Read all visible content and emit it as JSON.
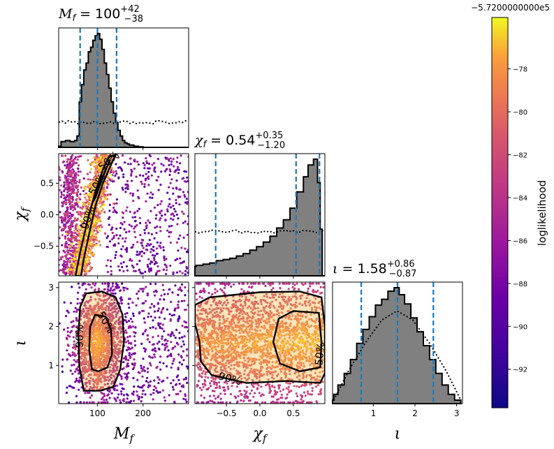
{
  "chart_data": {
    "type": "corner",
    "parameters": [
      {
        "key": "Mf",
        "symbol": "M",
        "sub": "f",
        "range": [
          15,
          300
        ],
        "ticks": [
          100,
          200
        ],
        "tick_labels": [
          "100",
          "200"
        ]
      },
      {
        "key": "chif",
        "symbol": "χ",
        "sub": "f",
        "range": [
          -0.97,
          0.97
        ],
        "ticks": [
          -0.5,
          0.0,
          0.5
        ],
        "tick_labels": [
          "−0.5",
          "0.0",
          "0.5"
        ],
        "y_tick_labels": [
          "−0.5",
          "0.0",
          "0.5"
        ]
      },
      {
        "key": "iota",
        "symbol": "ι",
        "sub": "",
        "range": [
          0.02,
          3.14
        ],
        "ticks": [
          1,
          2,
          3
        ],
        "tick_labels": [
          "1",
          "2",
          "3"
        ]
      }
    ],
    "titles": [
      {
        "lhs": "M",
        "sub": "f",
        "value": "100",
        "plus": "+42",
        "minus": "−38"
      },
      {
        "lhs": "χ",
        "sub": "f",
        "value": "0.54",
        "plus": "+0.35",
        "minus": "−1.20"
      },
      {
        "lhs": "ι",
        "sub": "",
        "value": "1.58",
        "plus": "+0.86",
        "minus": "−0.87"
      }
    ],
    "marginals": [
      {
        "param": "Mf",
        "quantiles": [
          62,
          100,
          142
        ],
        "posterior_hist": [
          [
            20,
            0.01
          ],
          [
            30,
            0.05
          ],
          [
            40,
            0.06
          ],
          [
            50,
            0.05
          ],
          [
            55,
            0.06
          ],
          [
            60,
            0.1
          ],
          [
            65,
            0.4
          ],
          [
            70,
            0.55
          ],
          [
            75,
            0.68
          ],
          [
            80,
            0.74
          ],
          [
            85,
            0.84
          ],
          [
            90,
            0.88
          ],
          [
            95,
            0.94
          ],
          [
            100,
            0.98
          ],
          [
            105,
            1.0
          ],
          [
            110,
            0.95
          ],
          [
            115,
            0.86
          ],
          [
            120,
            0.74
          ],
          [
            125,
            0.64
          ],
          [
            130,
            0.52
          ],
          [
            135,
            0.4
          ],
          [
            140,
            0.3
          ],
          [
            145,
            0.22
          ],
          [
            150,
            0.15
          ],
          [
            155,
            0.1
          ],
          [
            160,
            0.06
          ],
          [
            165,
            0.04
          ],
          [
            170,
            0.03
          ],
          [
            180,
            0.02
          ],
          [
            190,
            0.01
          ],
          [
            200,
            0.005
          ],
          [
            300,
            0.0
          ]
        ],
        "prior_level": 0.22
      },
      {
        "param": "chif",
        "quantiles": [
          -0.66,
          0.54,
          0.89
        ],
        "posterior_hist": [
          [
            -0.95,
            0.08
          ],
          [
            -0.85,
            0.09
          ],
          [
            -0.75,
            0.1
          ],
          [
            -0.65,
            0.11
          ],
          [
            -0.55,
            0.13
          ],
          [
            -0.45,
            0.14
          ],
          [
            -0.35,
            0.15
          ],
          [
            -0.25,
            0.17
          ],
          [
            -0.15,
            0.19
          ],
          [
            -0.05,
            0.22
          ],
          [
            0.05,
            0.25
          ],
          [
            0.15,
            0.29
          ],
          [
            0.25,
            0.34
          ],
          [
            0.35,
            0.41
          ],
          [
            0.45,
            0.48
          ],
          [
            0.55,
            0.58
          ],
          [
            0.65,
            0.72
          ],
          [
            0.72,
            0.85
          ],
          [
            0.8,
            0.95
          ],
          [
            0.86,
            1.0
          ],
          [
            0.9,
            0.8
          ],
          [
            0.93,
            0.4
          ],
          [
            0.97,
            0.0
          ]
        ],
        "prior_level": 0.38
      },
      {
        "param": "iota",
        "quantiles": [
          0.71,
          1.58,
          2.44
        ],
        "posterior_hist": [
          [
            0.05,
            0.03
          ],
          [
            0.15,
            0.08
          ],
          [
            0.3,
            0.16
          ],
          [
            0.45,
            0.26
          ],
          [
            0.6,
            0.38
          ],
          [
            0.75,
            0.52
          ],
          [
            0.9,
            0.64
          ],
          [
            1.05,
            0.75
          ],
          [
            1.2,
            0.85
          ],
          [
            1.35,
            0.9
          ],
          [
            1.5,
            0.97
          ],
          [
            1.62,
            1.0
          ],
          [
            1.75,
            0.94
          ],
          [
            1.9,
            0.86
          ],
          [
            2.05,
            0.74
          ],
          [
            2.2,
            0.62
          ],
          [
            2.35,
            0.5
          ],
          [
            2.5,
            0.38
          ],
          [
            2.65,
            0.26
          ],
          [
            2.8,
            0.16
          ],
          [
            2.95,
            0.08
          ],
          [
            3.1,
            0.03
          ]
        ],
        "prior_curve": [
          [
            0.05,
            0.03
          ],
          [
            0.4,
            0.28
          ],
          [
            0.8,
            0.52
          ],
          [
            1.2,
            0.72
          ],
          [
            1.57,
            0.8
          ],
          [
            1.95,
            0.72
          ],
          [
            2.35,
            0.52
          ],
          [
            2.75,
            0.28
          ],
          [
            3.1,
            0.03
          ]
        ]
      }
    ],
    "contour_levels": [
      "50%",
      "90%"
    ],
    "colorbar": {
      "label": "loglikelihood",
      "offset_text": "−5.7200000000e5",
      "range": [
        -93.8,
        -75.6
      ],
      "ticks": [
        -92,
        -90,
        -88,
        -86,
        -84,
        -82,
        -80,
        -78
      ],
      "tick_labels": [
        "−92",
        "−90",
        "−88",
        "−86",
        "−84",
        "−82",
        "−80",
        "−78"
      ],
      "colormap": "plasma"
    },
    "colors": {
      "histogram_fill": "#808080",
      "quantile_line": "#1f77b4",
      "contour": "#000000"
    }
  }
}
